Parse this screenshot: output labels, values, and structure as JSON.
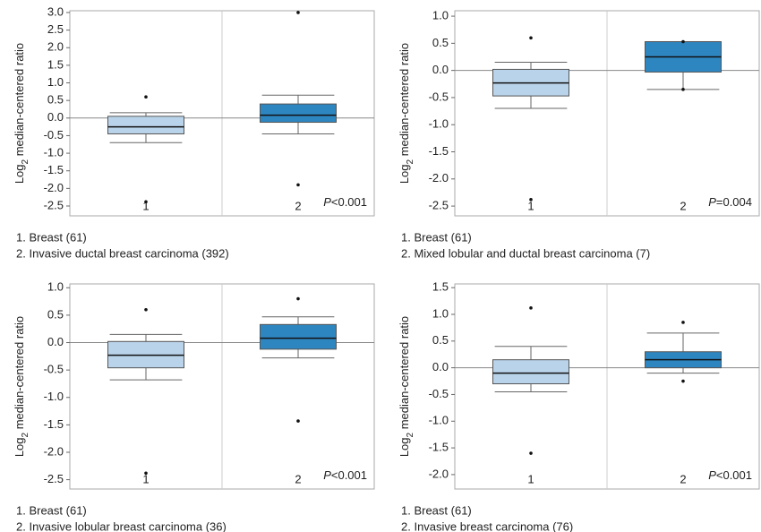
{
  "chart_data": [
    {
      "type": "box",
      "ylabel": [
        "Log",
        "2",
        " median-centered ratio"
      ],
      "categories": [
        "1",
        "2"
      ],
      "groups": [
        {
          "color": "#b9d3ea",
          "min": -0.7,
          "q1": -0.45,
          "median": -0.25,
          "q3": 0.05,
          "max": 0.15,
          "outliers": [
            0.6,
            -2.38
          ]
        },
        {
          "color": "#2e86c1",
          "min": -0.45,
          "q1": -0.12,
          "median": 0.08,
          "q3": 0.4,
          "max": 0.65,
          "outliers": [
            3.0,
            -1.9
          ]
        }
      ],
      "legend": [
        "1. Breast (61)",
        "2. Invasive ductal breast carcinoma (392)"
      ],
      "p_label": "P",
      "p_text": "<0.001",
      "ylim": [
        -2.78,
        3.05
      ],
      "reference_line": 0,
      "yticks": [
        {
          "value": 3,
          "label": "3.0"
        },
        2.5,
        {
          "value": 2,
          "label": "2.0"
        },
        1.5,
        {
          "value": 1,
          "label": "1.0"
        },
        0.5,
        {
          "value": 0,
          "label": "0.0"
        },
        -0.5,
        {
          "value": -1,
          "label": "-1.0"
        },
        -1.5,
        {
          "value": -2,
          "label": "-2.0"
        },
        -2.5
      ]
    },
    {
      "type": "box",
      "ylabel": [
        "Log",
        "2",
        " median-centered ratio"
      ],
      "categories": [
        "1",
        "2"
      ],
      "groups": [
        {
          "color": "#b9d3ea",
          "min": -0.7,
          "q1": -0.47,
          "median": -0.23,
          "q3": 0.02,
          "max": 0.15,
          "outliers": [
            0.6,
            -2.38
          ]
        },
        {
          "color": "#2e86c1",
          "min": -0.35,
          "q1": -0.03,
          "median": 0.25,
          "q3": 0.53,
          "max": 0.53,
          "outliers": [
            0.53,
            -0.35
          ]
        }
      ],
      "legend": [
        "1. Breast (61)",
        "2. Mixed lobular and ductal breast carcinoma (7)"
      ],
      "p_label": "P",
      "p_text": "=0.004",
      "ylim": [
        -2.68,
        1.1
      ],
      "reference_line": 0,
      "yticks": [
        {
          "value": 1,
          "label": "1.0"
        },
        0.5,
        {
          "value": 0,
          "label": "0.0"
        },
        -0.5,
        {
          "value": -1,
          "label": "-1.0"
        },
        -1.5,
        {
          "value": -2,
          "label": "-2.0"
        },
        -2.5
      ]
    },
    {
      "type": "box",
      "ylabel": [
        "Log",
        "2",
        " median-centered ratio"
      ],
      "categories": [
        "1",
        "2"
      ],
      "groups": [
        {
          "color": "#b9d3ea",
          "min": -0.68,
          "q1": -0.46,
          "median": -0.23,
          "q3": 0.02,
          "max": 0.15,
          "outliers": [
            0.6,
            -2.38
          ]
        },
        {
          "color": "#2e86c1",
          "min": -0.28,
          "q1": -0.12,
          "median": 0.08,
          "q3": 0.33,
          "max": 0.47,
          "outliers": [
            0.8,
            -1.43
          ]
        }
      ],
      "legend": [
        "1. Breast (61)",
        "2. Invasive lobular breast carcinoma (36)"
      ],
      "p_label": "P",
      "p_text": "<0.001",
      "ylim": [
        -2.67,
        1.07
      ],
      "reference_line": 0,
      "yticks": [
        {
          "value": 1,
          "label": "1.0"
        },
        0.5,
        {
          "value": 0,
          "label": "0.0"
        },
        -0.5,
        {
          "value": -1,
          "label": "-1.0"
        },
        -1.5,
        {
          "value": -2,
          "label": "-2.0"
        },
        -2.5
      ]
    },
    {
      "type": "box",
      "ylabel": [
        "Log",
        "2",
        " median-centered ratio"
      ],
      "categories": [
        "1",
        "2"
      ],
      "groups": [
        {
          "color": "#b9d3ea",
          "min": -0.45,
          "q1": -0.3,
          "median": -0.1,
          "q3": 0.15,
          "max": 0.4,
          "outliers": [
            1.12,
            -1.6
          ]
        },
        {
          "color": "#2e86c1",
          "min": -0.1,
          "q1": 0.0,
          "median": 0.15,
          "q3": 0.3,
          "max": 0.65,
          "outliers": [
            0.85,
            -0.25
          ]
        }
      ],
      "legend": [
        "1. Breast (61)",
        "2. Invasive breast carcinoma (76)"
      ],
      "p_label": "P",
      "p_text": "<0.001",
      "ylim": [
        -2.27,
        1.57
      ],
      "reference_line": 0,
      "yticks": [
        1.5,
        {
          "value": 1,
          "label": "1.0"
        },
        0.5,
        {
          "value": 0,
          "label": "0.0"
        },
        -0.5,
        {
          "value": -1,
          "label": "-1.0"
        },
        -1.5,
        {
          "value": -2,
          "label": "-2.0"
        }
      ]
    }
  ]
}
